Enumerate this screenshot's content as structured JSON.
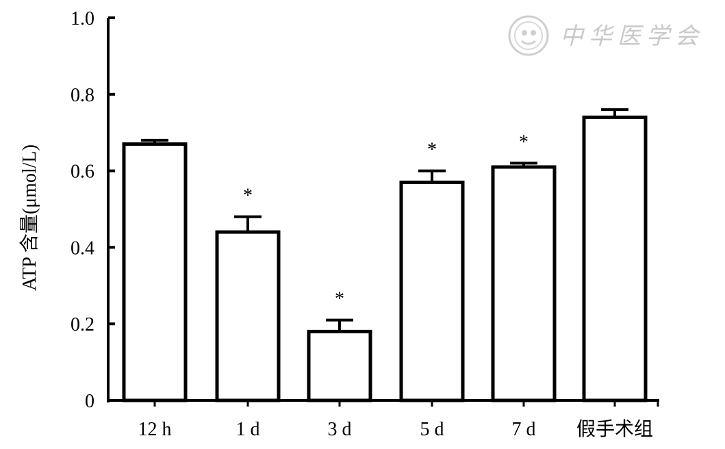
{
  "chart_data": {
    "type": "bar",
    "categories": [
      "12 h",
      "1 d",
      "3 d",
      "5 d",
      "7 d",
      "假手术组"
    ],
    "values": [
      0.67,
      0.44,
      0.18,
      0.57,
      0.61,
      0.74
    ],
    "errors": [
      0.01,
      0.04,
      0.03,
      0.03,
      0.01,
      0.02
    ],
    "significance": [
      "",
      "*",
      "*",
      "*",
      "*",
      ""
    ],
    "ylabel": "ATP 含量(μmol/L)",
    "xlabel": "",
    "ylim": [
      0,
      1.0
    ],
    "yticks": [
      0,
      0.2,
      0.4,
      0.6,
      0.8,
      1.0
    ],
    "ytick_labels": [
      "0",
      "0.2",
      "0.4",
      "0.6",
      "0.8",
      "1.0"
    ],
    "grid": false,
    "bar_fill": "#ffffff",
    "bar_stroke": "#000000"
  },
  "watermark": {
    "text": "中华医学会",
    "color": "#c9c9c9"
  }
}
